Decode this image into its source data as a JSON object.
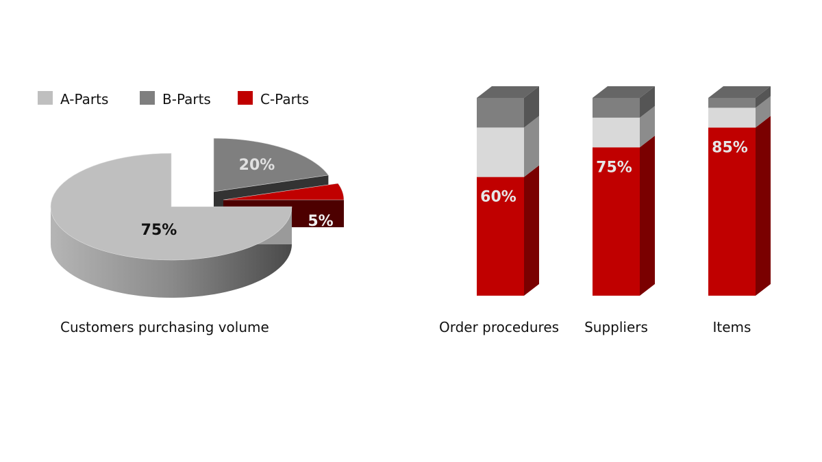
{
  "chart_data": [
    {
      "type": "pie",
      "style": "3d-exploded",
      "xlabel": "Customers purchasing volume",
      "legend": {
        "placement": "top-left",
        "entries": [
          "A-Parts",
          "B-Parts",
          "C-Parts"
        ]
      },
      "slices": [
        {
          "name": "A-Parts",
          "value": 75,
          "label": "75%",
          "color": "#bfbfbf"
        },
        {
          "name": "B-Parts",
          "value": 20,
          "label": "20%",
          "color": "#7f7f7f"
        },
        {
          "name": "C-Parts",
          "value": 5,
          "label": "5%",
          "color": "#c00000"
        }
      ]
    },
    {
      "type": "bar",
      "style": "3d-stacked-100",
      "categories": [
        "Order procedures",
        "Suppliers",
        "Items"
      ],
      "series": [
        {
          "name": "C-Parts",
          "values": [
            60,
            75,
            85
          ],
          "labels": [
            "60%",
            "75%",
            "85%"
          ],
          "color": "#c00000"
        },
        {
          "name": "A-Parts",
          "values": [
            25,
            15,
            10
          ],
          "color": "#d9d9d9"
        },
        {
          "name": "B-Parts",
          "values": [
            15,
            10,
            5
          ],
          "color": "#7f7f7f"
        }
      ],
      "ylim": [
        0,
        100
      ]
    }
  ]
}
